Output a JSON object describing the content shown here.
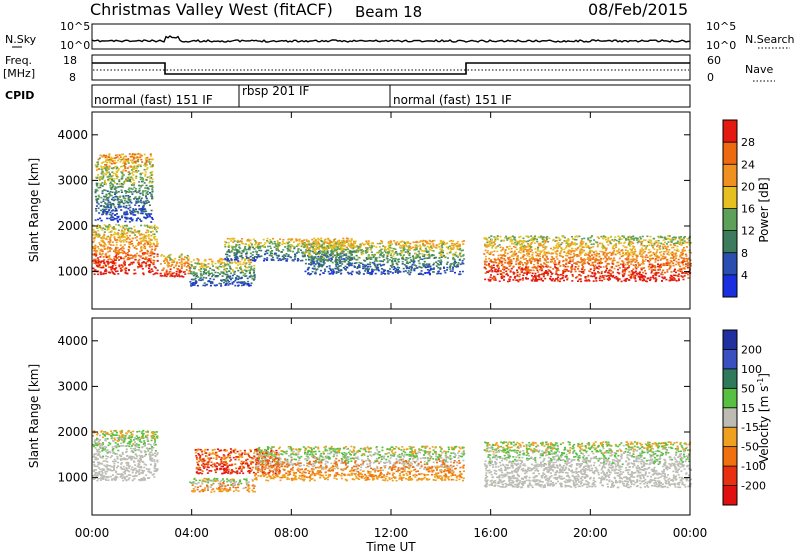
{
  "header": {
    "station": "Christmas Valley West (fitACF)",
    "beam": "Beam 18",
    "date": "08/Feb/2015"
  },
  "panels": {
    "noise": {
      "left_label": "N.Sky",
      "right_label": "N.Search",
      "tick_top": "10^5",
      "tick_bottom": "10^0"
    },
    "freq": {
      "left_label_1": "Freq.",
      "left_label_2": "[MHz]",
      "left_tick_top": "18",
      "left_tick_bottom": "8",
      "right_label": "Nave",
      "right_tick_top": "60",
      "right_tick_bottom": "0"
    },
    "cpid": {
      "label": "CPID",
      "segments": [
        {
          "label": "normal (fast) 151 IF",
          "start_hour": 0,
          "end_hour": 6
        },
        {
          "label": "rbsp 201 IF",
          "start_hour": 6,
          "end_hour": 12
        },
        {
          "label": "normal (fast) 151 IF",
          "start_hour": 12,
          "end_hour": 24
        }
      ]
    }
  },
  "power_colorbar": {
    "title": "Power [dB]",
    "ticks": [
      "4",
      "8",
      "12",
      "16",
      "20",
      "24",
      "28"
    ],
    "colors": [
      "#1a2fe0",
      "#2a4fb0",
      "#3c7c5c",
      "#5da05a",
      "#e6c020",
      "#f09020",
      "#ee6a10",
      "#e41a10"
    ]
  },
  "velocity_colorbar": {
    "title": "Velocity [m s",
    "title_sup": "-1",
    "title_end": "]",
    "ticks": [
      "200",
      "100",
      "50",
      "15",
      "-15",
      "-50",
      "-100",
      "-200"
    ],
    "colors": [
      "#2030a0",
      "#3a50c0",
      "#2e7a5a",
      "#58c040",
      "#bcbcb4",
      "#f0a020",
      "#f07010",
      "#e83010",
      "#e01010"
    ]
  },
  "chart_data": {
    "type": "heatmap",
    "title": "Christmas Valley West (fitACF)",
    "xlabel": "Time UT",
    "ylabel": "Slant Range [km]",
    "x_ticks": [
      "00:00",
      "04:00",
      "08:00",
      "12:00",
      "16:00",
      "20:00",
      "00:00"
    ],
    "x_range_hours": [
      0,
      24
    ],
    "y_ticks": [
      "1000",
      "2000",
      "3000",
      "4000"
    ],
    "y_range_km": [
      180,
      4500
    ],
    "power_bands": [
      {
        "start_hour": 0.0,
        "end_hour": 2.6,
        "range_lo_km": 950,
        "range_hi_km": 2050,
        "level": "high"
      },
      {
        "start_hour": 0.1,
        "end_hour": 2.4,
        "range_lo_km": 2100,
        "range_hi_km": 3600,
        "level": "mixed"
      },
      {
        "start_hour": 2.7,
        "end_hour": 3.9,
        "range_lo_km": 900,
        "range_hi_km": 1400,
        "level": "high"
      },
      {
        "start_hour": 3.9,
        "end_hour": 6.5,
        "range_lo_km": 700,
        "range_hi_km": 1300,
        "level": "medium"
      },
      {
        "start_hour": 5.3,
        "end_hour": 10.5,
        "range_lo_km": 1250,
        "range_hi_km": 1750,
        "level": "medium"
      },
      {
        "start_hour": 8.5,
        "end_hour": 14.9,
        "range_lo_km": 950,
        "range_hi_km": 1700,
        "level": "medium"
      },
      {
        "start_hour": 15.7,
        "end_hour": 24.0,
        "range_lo_km": 800,
        "range_hi_km": 1800,
        "level": "high"
      }
    ],
    "velocity_bands": [
      {
        "start_hour": 0.0,
        "end_hour": 2.6,
        "range_lo_km": 950,
        "range_hi_km": 2050,
        "class": "-15 to 15"
      },
      {
        "start_hour": 3.9,
        "end_hour": 6.5,
        "range_lo_km": 700,
        "range_hi_km": 1000,
        "class": "-50 to -15"
      },
      {
        "start_hour": 4.1,
        "end_hour": 7.5,
        "range_lo_km": 1100,
        "range_hi_km": 1650,
        "class": "-200 to -100"
      },
      {
        "start_hour": 6.5,
        "end_hour": 14.9,
        "range_lo_km": 950,
        "range_hi_km": 1700,
        "class": "-50 to -15"
      },
      {
        "start_hour": 15.7,
        "end_hour": 24.0,
        "range_lo_km": 800,
        "range_hi_km": 1800,
        "class": "-15 to 15"
      }
    ]
  }
}
